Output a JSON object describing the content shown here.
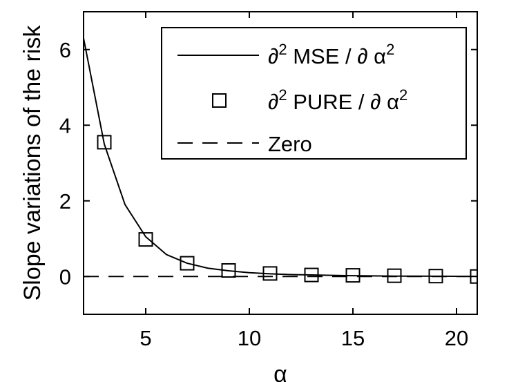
{
  "chart_data": {
    "type": "line",
    "xlabel": "α",
    "ylabel": "Slope variations of the risk",
    "xlim": [
      2,
      21
    ],
    "ylim": [
      -1,
      7
    ],
    "xticks": [
      5,
      10,
      15,
      20
    ],
    "yticks": [
      0,
      2,
      4,
      6
    ],
    "grid": false,
    "legend_position": "top-right",
    "series": [
      {
        "name": "∂² MSE / ∂ α²",
        "style": "solid",
        "color": "#000000",
        "x": [
          2,
          3,
          4,
          5,
          6,
          7,
          8,
          9,
          10,
          11,
          12,
          13,
          14,
          15,
          16,
          17,
          18,
          19,
          20,
          21
        ],
        "y": [
          6.3,
          3.5,
          1.9,
          1.05,
          0.58,
          0.35,
          0.22,
          0.15,
          0.1,
          0.07,
          0.05,
          0.04,
          0.03,
          0.02,
          0.015,
          0.01,
          0.008,
          0.006,
          0.005,
          0.004
        ]
      },
      {
        "name": "∂² PURE / ∂ α²",
        "style": "square-marker",
        "color": "#000000",
        "x": [
          3,
          5,
          7,
          9,
          11,
          13,
          15,
          17,
          19,
          21
        ],
        "y": [
          3.55,
          0.98,
          0.35,
          0.16,
          0.08,
          0.04,
          0.03,
          0.02,
          0.01,
          0.0
        ]
      },
      {
        "name": "Zero",
        "style": "dashed",
        "color": "#000000",
        "x": [
          2,
          21
        ],
        "y": [
          0,
          0
        ]
      }
    ],
    "legend": {
      "labels": [
        {
          "base": "∂",
          "sup": "2",
          "rest": " MSE / ∂ α",
          "sup2": "2"
        },
        {
          "base": "∂",
          "sup": "2",
          "rest": " PURE / ∂ α",
          "sup2": "2"
        },
        {
          "base": "Zero",
          "sup": "",
          "rest": "",
          "sup2": ""
        }
      ]
    }
  }
}
